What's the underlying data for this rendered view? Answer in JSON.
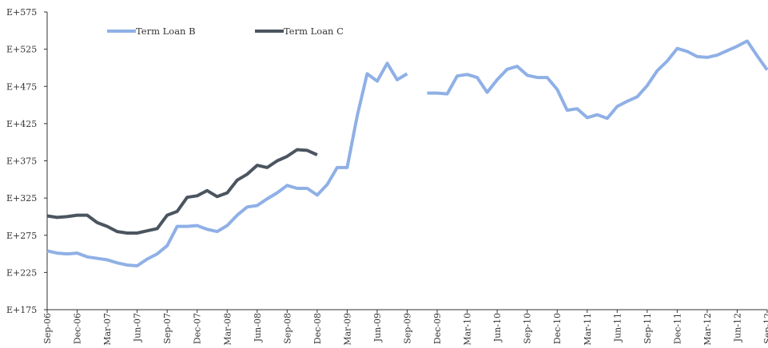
{
  "chart_data": {
    "type": "line",
    "title": "",
    "xlabel": "",
    "ylabel": "",
    "ylim": [
      175,
      575
    ],
    "yticks": [
      "E+175",
      "E+225",
      "E+275",
      "E+325",
      "E+375",
      "E+425",
      "E+475",
      "E+525",
      "E+575"
    ],
    "ytick_values": [
      175,
      225,
      275,
      325,
      375,
      425,
      475,
      525,
      575
    ],
    "xticks": [
      "Sep-06",
      "Dec-06",
      "Mar-07",
      "Jun-07",
      "Sep-07",
      "Dec-07",
      "Mar-08",
      "Jun-08",
      "Sep-08",
      "Dec-08",
      "Mar-09",
      "Jun-09",
      "Sep-09",
      "Dec-09",
      "Mar-10",
      "Jun-10",
      "Sep-10",
      "Dec-10",
      "Mar-11",
      "Jun-11",
      "Sep-11",
      "Dec-11",
      "Mar-12",
      "Jun-12",
      "Sep-12"
    ],
    "xtick_months": [
      0,
      3,
      6,
      9,
      12,
      15,
      18,
      21,
      24,
      27,
      30,
      33,
      36,
      39,
      42,
      45,
      48,
      51,
      54,
      57,
      60,
      63,
      66,
      69,
      72
    ],
    "grid": false,
    "legend_position": "top-left",
    "series": [
      {
        "name": "Term Loan B",
        "color": "#8fb0e6",
        "points": [
          [
            0,
            254
          ],
          [
            1,
            251
          ],
          [
            2,
            250
          ],
          [
            3,
            251
          ],
          [
            4,
            246
          ],
          [
            5,
            244
          ],
          [
            6,
            242
          ],
          [
            7,
            238
          ],
          [
            8,
            235
          ],
          [
            9,
            234
          ],
          [
            10,
            243
          ],
          [
            11,
            250
          ],
          [
            12,
            261
          ],
          [
            13,
            287
          ],
          [
            14,
            287
          ],
          [
            15,
            288
          ],
          [
            16,
            283
          ],
          [
            17,
            280
          ],
          [
            18,
            288
          ],
          [
            19,
            302
          ],
          [
            20,
            313
          ],
          [
            21,
            315
          ],
          [
            22,
            324
          ],
          [
            23,
            332
          ],
          [
            24,
            342
          ],
          [
            25,
            338
          ],
          [
            26,
            338
          ],
          [
            27,
            329
          ],
          [
            28,
            343
          ],
          [
            29,
            366
          ],
          [
            30,
            366
          ],
          [
            31,
            435
          ],
          [
            32,
            492
          ],
          [
            33,
            482
          ],
          [
            34,
            506
          ],
          [
            35,
            484
          ],
          [
            36,
            492
          ],
          [
            38,
            466
          ],
          [
            39,
            466
          ],
          [
            40,
            465
          ],
          [
            41,
            489
          ],
          [
            42,
            491
          ],
          [
            43,
            487
          ],
          [
            44,
            467
          ],
          [
            45,
            484
          ],
          [
            46,
            498
          ],
          [
            47,
            502
          ],
          [
            48,
            490
          ],
          [
            49,
            487
          ],
          [
            50,
            487
          ],
          [
            51,
            471
          ],
          [
            52,
            443
          ],
          [
            53,
            445
          ],
          [
            54,
            433
          ],
          [
            55,
            437
          ],
          [
            56,
            432
          ],
          [
            57,
            448
          ],
          [
            58,
            455
          ],
          [
            59,
            461
          ],
          [
            60,
            476
          ],
          [
            61,
            496
          ],
          [
            62,
            509
          ],
          [
            63,
            526
          ],
          [
            64,
            522
          ],
          [
            65,
            515
          ],
          [
            66,
            514
          ],
          [
            67,
            517
          ],
          [
            68,
            523
          ],
          [
            69,
            529
          ],
          [
            70,
            536
          ],
          [
            71,
            516
          ],
          [
            72,
            497
          ]
        ]
      },
      {
        "name": "Term Loan C",
        "color": "#4b5560",
        "points": [
          [
            0,
            301
          ],
          [
            1,
            299
          ],
          [
            2,
            300
          ],
          [
            3,
            302
          ],
          [
            4,
            302
          ],
          [
            5,
            292
          ],
          [
            6,
            287
          ],
          [
            7,
            280
          ],
          [
            8,
            278
          ],
          [
            9,
            278
          ],
          [
            10,
            281
          ],
          [
            11,
            284
          ],
          [
            12,
            302
          ],
          [
            13,
            307
          ],
          [
            14,
            326
          ],
          [
            15,
            328
          ],
          [
            16,
            335
          ],
          [
            17,
            327
          ],
          [
            18,
            332
          ],
          [
            19,
            349
          ],
          [
            20,
            357
          ],
          [
            21,
            369
          ],
          [
            22,
            366
          ],
          [
            23,
            375
          ],
          [
            24,
            381
          ],
          [
            25,
            390
          ],
          [
            26,
            389
          ],
          [
            27,
            383
          ]
        ]
      }
    ]
  }
}
